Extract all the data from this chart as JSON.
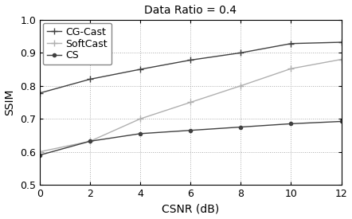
{
  "title": "Data Ratio = 0.4",
  "xlabel": "CSNR (dB)",
  "ylabel": "SSIM",
  "xlim": [
    0,
    12
  ],
  "ylim": [
    0.5,
    1.0
  ],
  "xticks": [
    0,
    2,
    4,
    6,
    8,
    10,
    12
  ],
  "yticks": [
    0.5,
    0.6,
    0.7,
    0.8,
    0.9,
    1.0
  ],
  "x": [
    0,
    2,
    4,
    6,
    8,
    10,
    12
  ],
  "cgcast": [
    0.778,
    0.82,
    0.85,
    0.878,
    0.9,
    0.928,
    0.932
  ],
  "softcast": [
    0.6,
    0.632,
    0.7,
    0.75,
    0.8,
    0.852,
    0.88
  ],
  "cs": [
    0.59,
    0.632,
    0.655,
    0.665,
    0.675,
    0.685,
    0.692
  ],
  "cgcast_color": "#404040",
  "softcast_color": "#b0b0b0",
  "cs_color": "#404040",
  "cgcast_marker": "+",
  "softcast_marker": "+",
  "cs_marker": "o",
  "marker_size_plus": 6,
  "marker_size_o": 3,
  "linewidth": 1.0,
  "background_color": "#ffffff",
  "grid_color": "#aaaaaa",
  "title_fontsize": 10,
  "label_fontsize": 10,
  "tick_fontsize": 9,
  "legend_fontsize": 9
}
